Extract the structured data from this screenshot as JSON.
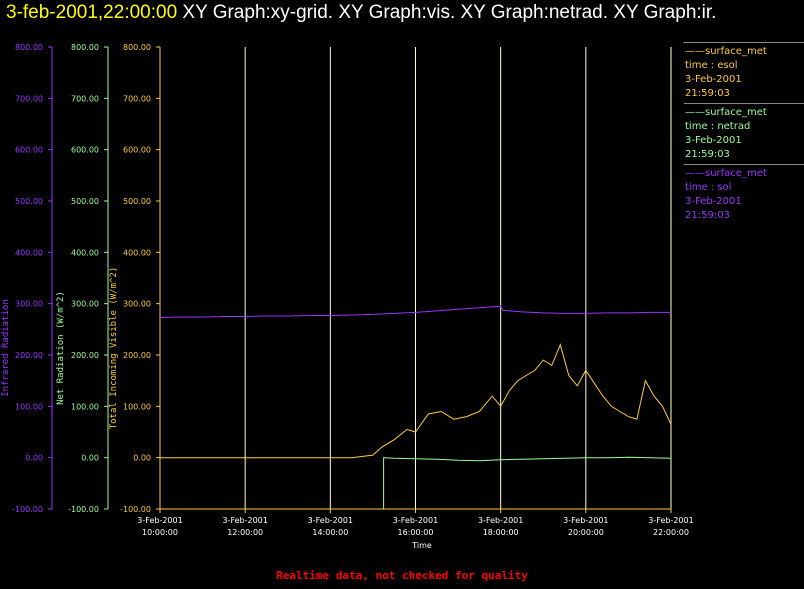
{
  "window": {
    "timestamp": "3-feb-2001,22:00:00",
    "graphs": "XY Graph:xy-grid.  XY Graph:vis.  XY Graph:netrad.  XY Graph:ir."
  },
  "footer": "Realtime data, not checked for quality",
  "colors": {
    "ir": "#9933ff",
    "netrad": "#99ff99",
    "vis": "#ffcc33",
    "grid": "#ffffcc",
    "footer": "#ff0000",
    "title": "#ffff00"
  },
  "legend": [
    {
      "source": "surface_met",
      "time": "time : esol",
      "date": "3-Feb-2001",
      "clock": "21:59:03",
      "color": "#ffcc33"
    },
    {
      "source": "surface_met",
      "time": "time : netrad",
      "date": "3-Feb-2001",
      "clock": "21:59:03",
      "color": "#99ff99"
    },
    {
      "source": "surface_met",
      "time": "time : sol",
      "date": "3-Feb-2001",
      "clock": "21:59:03",
      "color": "#9933ff"
    }
  ],
  "chart_data": {
    "type": "line",
    "xlabel": "Time",
    "xlim": [
      10.0,
      22.0
    ],
    "x_ticks": [
      {
        "value": 10,
        "date": "3-Feb-2001",
        "time": "10:00:00"
      },
      {
        "value": 12,
        "date": "3-Feb-2001",
        "time": "12:00:00"
      },
      {
        "value": 14,
        "date": "3-Feb-2001",
        "time": "14:00:00"
      },
      {
        "value": 16,
        "date": "3-Feb-2001",
        "time": "16:00:00"
      },
      {
        "value": 18,
        "date": "3-Feb-2001",
        "time": "18:00:00"
      },
      {
        "value": 20,
        "date": "3-Feb-2001",
        "time": "20:00:00"
      },
      {
        "value": 22,
        "date": "3-Feb-2001",
        "time": "22:00:00"
      }
    ],
    "grid": "vertical",
    "axes": [
      {
        "id": "ir",
        "label": "Infrared Radiation",
        "color": "#9933ff",
        "ylim": [
          -100,
          800
        ],
        "ticks": [
          "-100.00",
          "0.00",
          "100.00",
          "200.00",
          "300.00",
          "400.00",
          "500.00",
          "600.00",
          "700.00",
          "800.00"
        ]
      },
      {
        "id": "netrad",
        "label": "Net Radiation (W/m^2)",
        "color": "#99ff99",
        "ylim": [
          -100,
          800
        ],
        "ticks": [
          "-100.00",
          "0.00",
          "100.00",
          "200.00",
          "300.00",
          "400.00",
          "500.00",
          "600.00",
          "700.00",
          "800.00"
        ]
      },
      {
        "id": "vis",
        "label": "Total Incoming Visible (W/m^2)",
        "color": "#ffcc33",
        "ylim": [
          -100,
          800
        ],
        "ticks": [
          "-100.00",
          "0.00",
          "100.00",
          "200.00",
          "300.00",
          "400.00",
          "500.00",
          "600.00",
          "700.00",
          "800.00"
        ]
      }
    ],
    "series": [
      {
        "id": "ir",
        "color": "#9933ff",
        "x": [
          10.0,
          10.5,
          11.0,
          11.5,
          12.0,
          12.5,
          13.0,
          13.5,
          14.0,
          14.5,
          15.0,
          15.5,
          16.0,
          16.5,
          17.0,
          17.5,
          18.0,
          18.05,
          18.5,
          19.0,
          19.5,
          20.0,
          20.5,
          21.0,
          21.5,
          22.0
        ],
        "y": [
          273,
          274,
          274,
          275,
          275,
          276,
          276,
          277,
          277,
          278,
          279,
          281,
          283,
          286,
          289,
          292,
          295,
          287,
          284,
          282,
          281,
          281,
          282,
          282,
          283,
          283
        ]
      },
      {
        "id": "netrad",
        "color": "#99ff99",
        "x": [
          15.25,
          15.25,
          15.26,
          15.5,
          16.0,
          16.5,
          17.0,
          17.5,
          18.0,
          18.5,
          19.0,
          19.5,
          20.0,
          20.5,
          21.0,
          21.5,
          22.0
        ],
        "y": [
          -100,
          0,
          0,
          -1,
          -2,
          -3,
          -5,
          -6,
          -4,
          -3,
          -2,
          -1,
          0,
          0,
          1,
          0,
          -1
        ]
      },
      {
        "id": "vis",
        "color": "#ffcc33",
        "x": [
          10.0,
          10.5,
          11.0,
          11.5,
          12.0,
          12.5,
          13.0,
          13.5,
          14.0,
          14.5,
          15.0,
          15.2,
          15.5,
          15.8,
          16.0,
          16.3,
          16.6,
          16.9,
          17.2,
          17.5,
          17.8,
          18.0,
          18.2,
          18.4,
          18.6,
          18.8,
          19.0,
          19.2,
          19.4,
          19.6,
          19.8,
          20.0,
          20.2,
          20.4,
          20.6,
          20.8,
          21.0,
          21.2,
          21.4,
          21.6,
          21.8,
          22.0
        ],
        "y": [
          0,
          0,
          0,
          0,
          0,
          0,
          0,
          0,
          0,
          0,
          5,
          20,
          35,
          55,
          50,
          85,
          90,
          75,
          80,
          90,
          120,
          100,
          130,
          150,
          160,
          170,
          190,
          180,
          220,
          160,
          140,
          170,
          145,
          120,
          100,
          90,
          80,
          75,
          150,
          120,
          100,
          65
        ]
      }
    ]
  }
}
